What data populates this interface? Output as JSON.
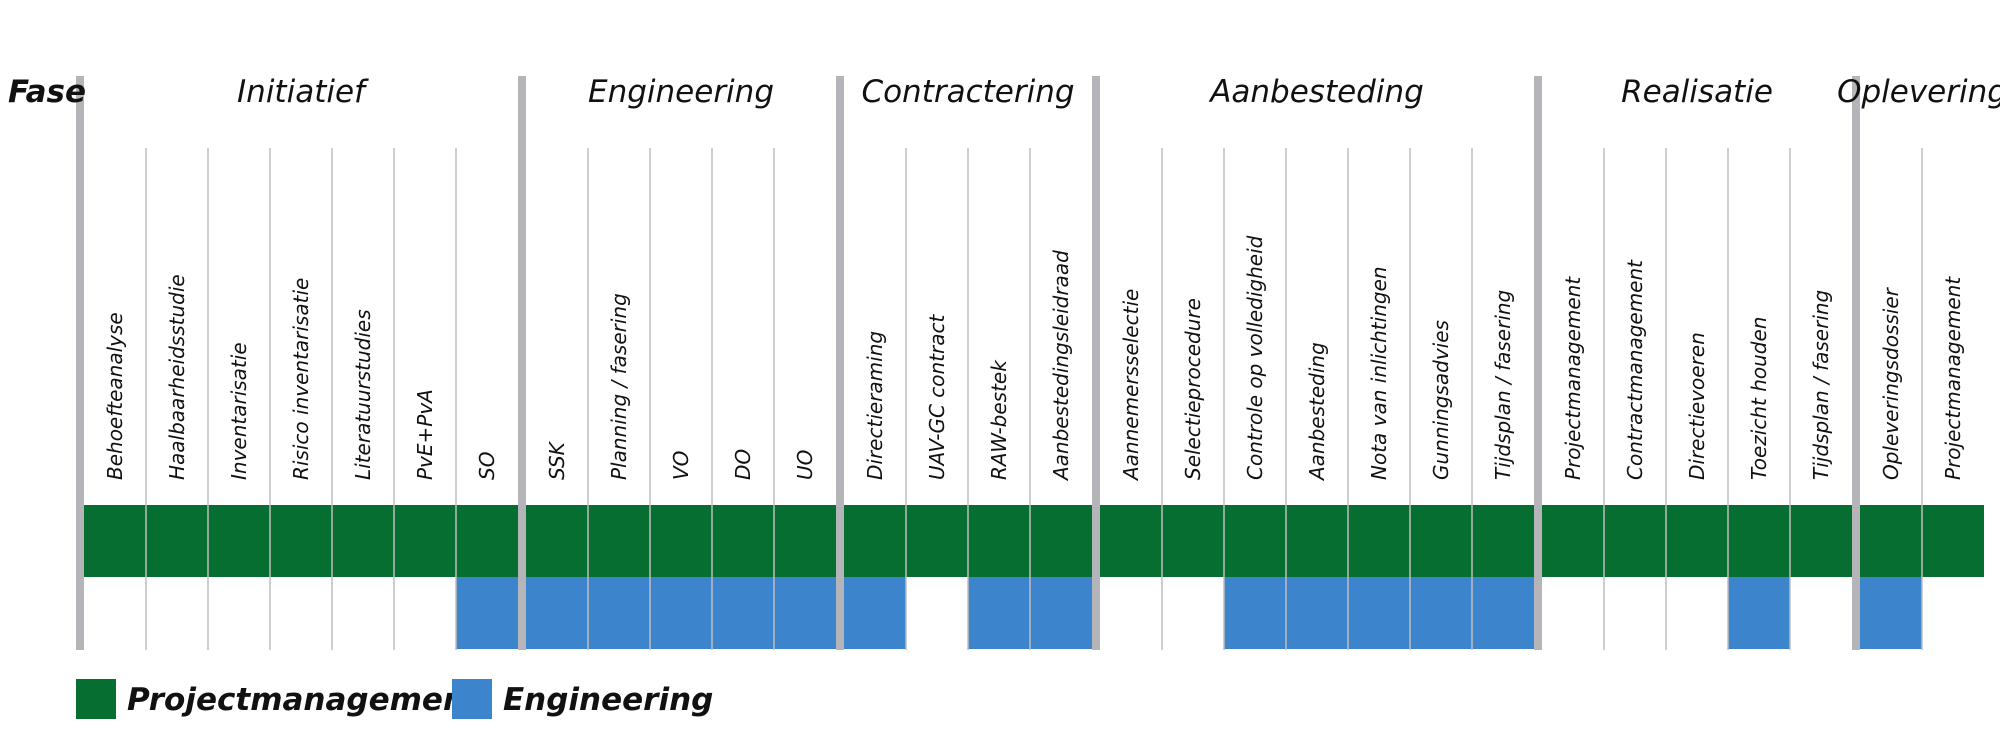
{
  "fase_label": "Fase",
  "colors": {
    "projectmanagement": "#066e31",
    "engineering": "#3c85cd",
    "separator": "#b5b5b9",
    "gridline": "#bdbdbd"
  },
  "phases": [
    {
      "name": "Initiatief",
      "activities": [
        "Behoefteanalyse",
        "Haalbaarheidsstudie",
        "Inventarisatie",
        "Risico inventarisatie",
        "Literatuurstudies",
        "PvE+PvA",
        "SO"
      ]
    },
    {
      "name": "Engineering",
      "activities": [
        "SSK",
        "Planning / fasering",
        "VO",
        "DO",
        "UO"
      ]
    },
    {
      "name": "Contractering",
      "activities": [
        "Directieraming",
        "UAV-GC contract",
        "RAW-bestek",
        "Aanbestedingsleidraad"
      ]
    },
    {
      "name": "Aanbesteding",
      "activities": [
        "Aannemersselectie",
        "Selectieprocedure",
        "Controle op volledigheid",
        "Aanbesteding",
        "Nota van inlichtingen",
        "Gunningsadvies",
        "Tijdsplan / fasering"
      ]
    },
    {
      "name": "Realisatie",
      "activities": [
        "Projectmanagement",
        "Contractmanagement",
        "Directievoeren",
        "Toezicht houden",
        "Tijdsplan / fasering"
      ]
    },
    {
      "name": "Oplevering",
      "activities": [
        "Opleveringsdossier",
        "Projectmanagement"
      ]
    }
  ],
  "engineering_involvement": [
    [
      false,
      false,
      false,
      false,
      false,
      false,
      true
    ],
    [
      true,
      true,
      true,
      true,
      true
    ],
    [
      true,
      false,
      true,
      true
    ],
    [
      false,
      false,
      true,
      true,
      true,
      true,
      true
    ],
    [
      false,
      false,
      false,
      true,
      false
    ],
    [
      true,
      false
    ]
  ],
  "legend": [
    {
      "label": "Projectmanagement",
      "color": "#066e31"
    },
    {
      "label": "Engineering",
      "color": "#3c85cd"
    }
  ]
}
